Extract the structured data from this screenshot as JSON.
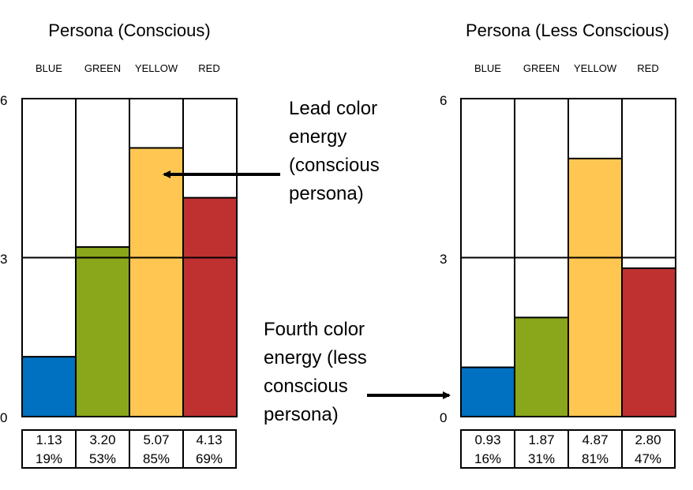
{
  "colors": {
    "blue": "#0070c0",
    "green": "#8aa61a",
    "yellow": "#ffc751",
    "red": "#bf3131",
    "outline": "#000000"
  },
  "chart_data": [
    {
      "type": "bar",
      "title": "Persona (Conscious)",
      "categories": [
        "BLUE",
        "GREEN",
        "YELLOW",
        "RED"
      ],
      "values": [
        1.13,
        3.2,
        5.07,
        4.13
      ],
      "value_labels": [
        "1.13",
        "3.20",
        "5.07",
        "4.13"
      ],
      "percent_labels": [
        "19%",
        "53%",
        "85%",
        "69%"
      ],
      "ylim": [
        0,
        6
      ],
      "yticks": [
        "0",
        "3",
        "6"
      ],
      "reference_line": 3
    },
    {
      "type": "bar",
      "title": "Persona (Less Conscious)",
      "categories": [
        "BLUE",
        "GREEN",
        "YELLOW",
        "RED"
      ],
      "values": [
        0.93,
        1.87,
        4.87,
        2.8
      ],
      "value_labels": [
        "0.93",
        "1.87",
        "4.87",
        "2.80"
      ],
      "percent_labels": [
        "16%",
        "31%",
        "81%",
        "47%"
      ],
      "ylim": [
        0,
        6
      ],
      "yticks": [
        "0",
        "3",
        "6"
      ],
      "reference_line": 3
    }
  ],
  "annotations": {
    "lead": {
      "lines": [
        "Lead color",
        "energy",
        "(conscious",
        "persona)"
      ]
    },
    "fourth": {
      "lines": [
        "Fourth color",
        "energy (less",
        "conscious",
        "persona)"
      ]
    }
  }
}
